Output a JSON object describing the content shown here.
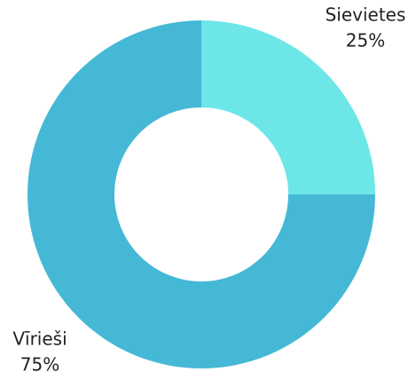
{
  "chart_data": {
    "type": "donut",
    "categories": [
      "Sievietes",
      "Vīrieši"
    ],
    "values": [
      25,
      75
    ],
    "value_labels": [
      "25%",
      "75%"
    ],
    "colors": [
      "#6de6e8",
      "#45b8d6"
    ]
  }
}
